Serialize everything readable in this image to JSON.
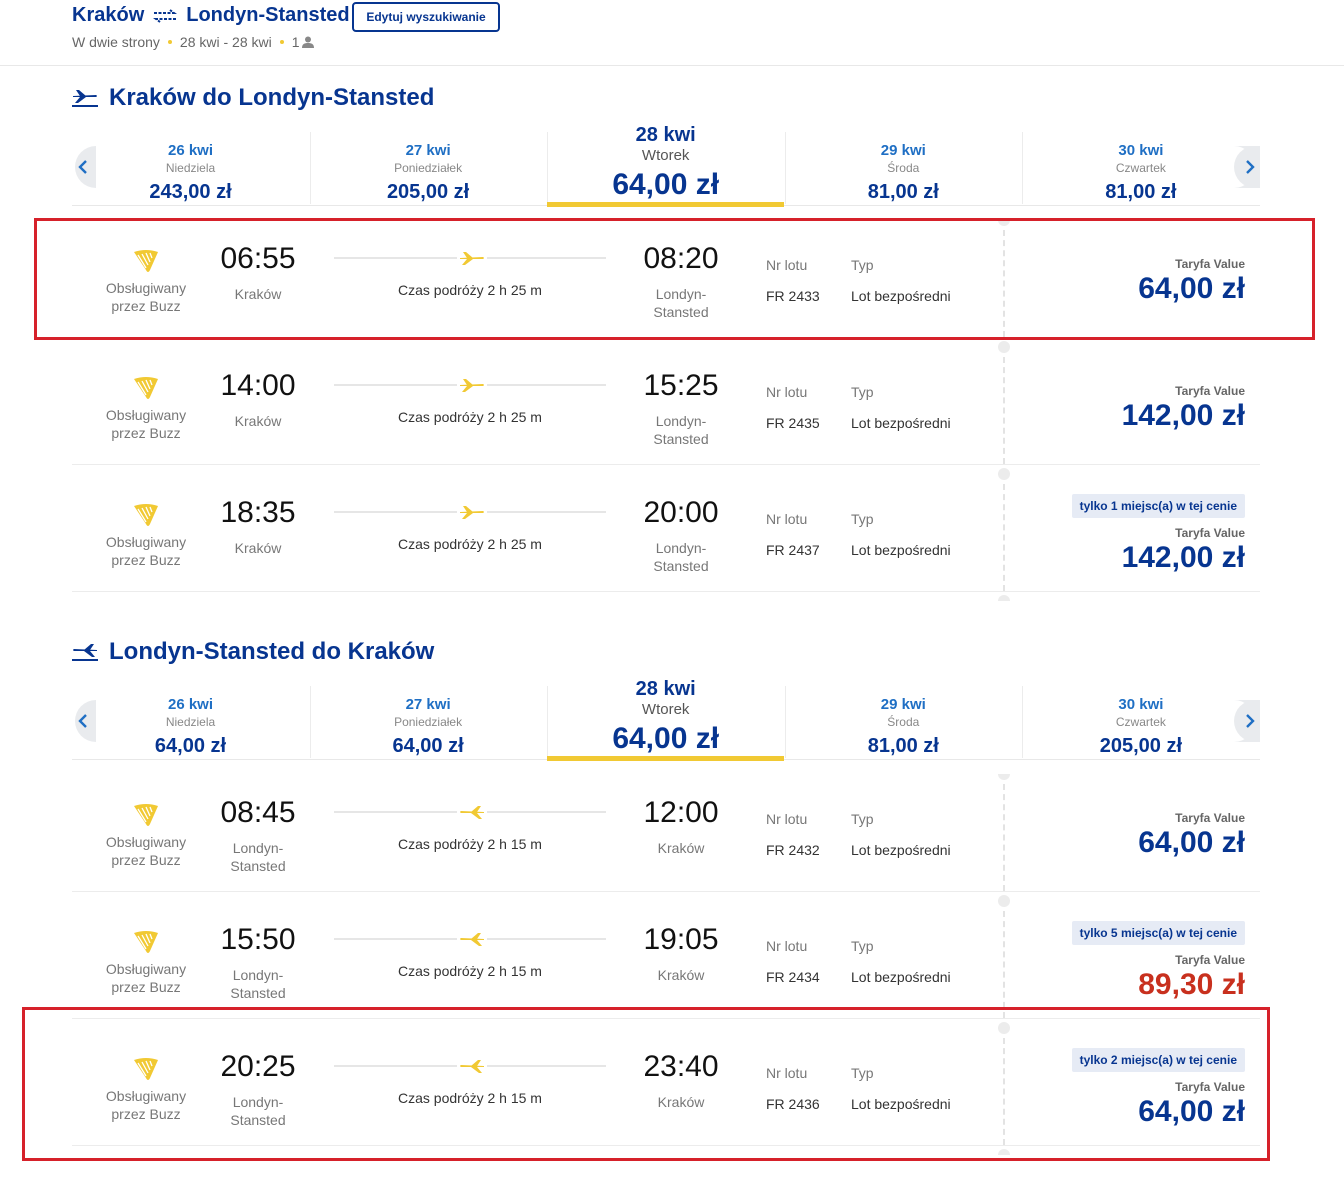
{
  "header": {
    "origin": "Kraków",
    "destination": "Londyn-Stansted",
    "edit_button": "Edytuj wyszukiwanie",
    "trip_type": "W dwie strony",
    "dates": "28 kwi - 28 kwi",
    "passengers": "1"
  },
  "labels": {
    "operator": "Obsługiwany przez Buzz",
    "flight_no": "Nr lotu",
    "type": "Typ",
    "fare": "Taryfa Value"
  },
  "sections": [
    {
      "title": "Kraków do Londyn-Stansted",
      "dates": [
        {
          "date": "26 kwi",
          "day": "Niedziela",
          "price": "243,00 zł"
        },
        {
          "date": "27 kwi",
          "day": "Poniedziałek",
          "price": "205,00 zł"
        },
        {
          "date": "28 kwi",
          "day": "Wtorek",
          "price": "64,00 zł",
          "selected": true
        },
        {
          "date": "29 kwi",
          "day": "Środa",
          "price": "81,00 zł"
        },
        {
          "date": "30 kwi",
          "day": "Czwartek",
          "price": "81,00 zł"
        }
      ],
      "flights": [
        {
          "departure_time": "06:55",
          "departure_city": "Kraków",
          "duration": "Czas podróży 2 h 25 m",
          "arrival_time": "08:20",
          "arrival_city": "Londyn-Stansted",
          "flight_number": "FR 2433",
          "flight_type": "Lot bezpośredni",
          "price": "64,00 zł",
          "price_color": "#073590"
        },
        {
          "departure_time": "14:00",
          "departure_city": "Kraków",
          "duration": "Czas podróży 2 h 25 m",
          "arrival_time": "15:25",
          "arrival_city": "Londyn-Stansted",
          "flight_number": "FR 2435",
          "flight_type": "Lot bezpośredni",
          "price": "142,00 zł",
          "price_color": "#073590"
        },
        {
          "departure_time": "18:35",
          "departure_city": "Kraków",
          "duration": "Czas podróży 2 h 25 m",
          "arrival_time": "20:00",
          "arrival_city": "Londyn-Stansted",
          "flight_number": "FR 2437",
          "flight_type": "Lot bezpośredni",
          "badge": "tylko 1 miejsc(a) w tej cenie",
          "price": "142,00 zł",
          "price_color": "#073590"
        }
      ]
    },
    {
      "title": "Londyn-Stansted do Kraków",
      "dates": [
        {
          "date": "26 kwi",
          "day": "Niedziela",
          "price": "64,00 zł"
        },
        {
          "date": "27 kwi",
          "day": "Poniedziałek",
          "price": "64,00 zł"
        },
        {
          "date": "28 kwi",
          "day": "Wtorek",
          "price": "64,00 zł",
          "selected": true
        },
        {
          "date": "29 kwi",
          "day": "Środa",
          "price": "81,00 zł"
        },
        {
          "date": "30 kwi",
          "day": "Czwartek",
          "price": "205,00 zł"
        }
      ],
      "flights": [
        {
          "departure_time": "08:45",
          "departure_city": "Londyn-Stansted",
          "duration": "Czas podróży 2 h 15 m",
          "arrival_time": "12:00",
          "arrival_city": "Kraków",
          "flight_number": "FR 2432",
          "flight_type": "Lot bezpośredni",
          "price": "64,00 zł",
          "price_color": "#073590"
        },
        {
          "departure_time": "15:50",
          "departure_city": "Londyn-Stansted",
          "duration": "Czas podróży 2 h 15 m",
          "arrival_time": "19:05",
          "arrival_city": "Kraków",
          "flight_number": "FR 2434",
          "flight_type": "Lot bezpośredni",
          "badge": "tylko 5 miejsc(a) w tej cenie",
          "price": "89,30 zł",
          "price_color": "#c8301e"
        },
        {
          "departure_time": "20:25",
          "departure_city": "Londyn-Stansted",
          "duration": "Czas podróży 2 h 15 m",
          "arrival_time": "23:40",
          "arrival_city": "Kraków",
          "flight_number": "FR 2436",
          "flight_type": "Lot bezpośredni",
          "badge": "tylko 2 miejsc(a) w tej cenie",
          "price": "64,00 zł",
          "price_color": "#073590"
        }
      ]
    }
  ]
}
